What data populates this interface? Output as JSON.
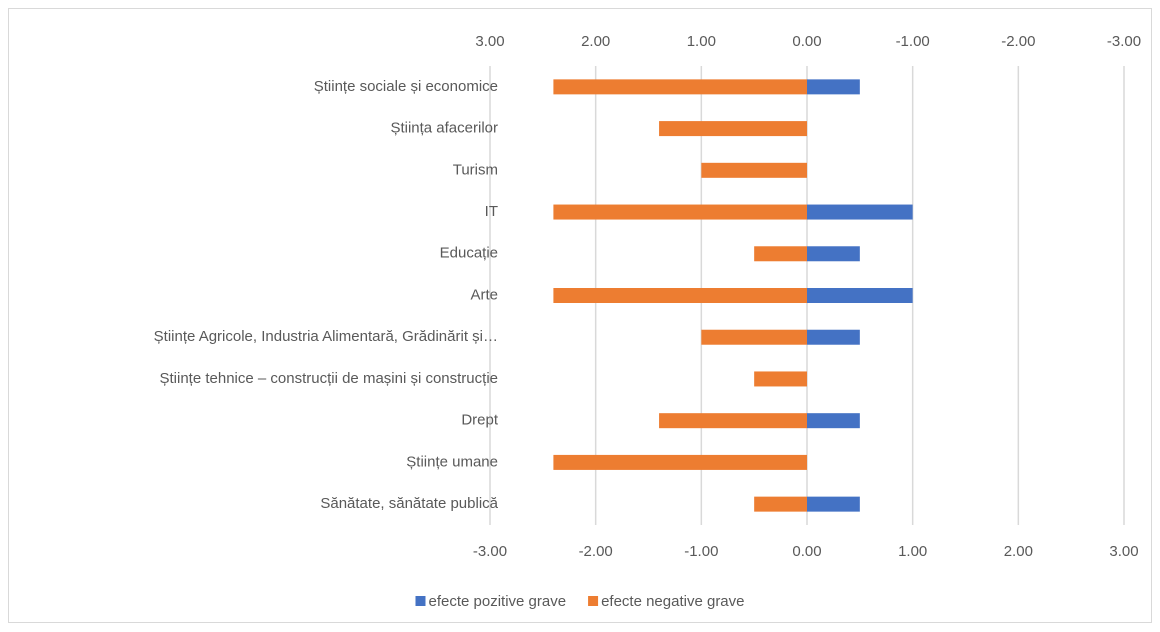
{
  "chart_data": {
    "type": "bar",
    "orientation": "horizontal",
    "categories": [
      "Științe sociale și economice",
      "Știința afacerilor",
      "Turism",
      "IT",
      "Educație",
      "Arte",
      "Științe Agricole, Industria Alimentară, Grădinărit și…",
      "Științe tehnice – construcții de mașini și construcție",
      "Drept",
      "Științe umane",
      "Sănătate, sănătate publică"
    ],
    "series": [
      {
        "name": "efecte pozitive grave",
        "color": "#4472c4",
        "values": [
          0.5,
          0,
          0,
          1,
          0.5,
          1,
          0.5,
          0,
          0.5,
          0,
          0.5
        ]
      },
      {
        "name": "efecte negative grave",
        "color": "#ed7d31",
        "values": [
          -2.4,
          -1.4,
          -1,
          -2.4,
          -0.5,
          -2.4,
          -1,
          -0.5,
          -1.4,
          -2.4,
          -0.5
        ]
      }
    ],
    "xlim": [
      -3,
      3
    ],
    "xticks": [
      {
        "value": -3,
        "label": "-3.00"
      },
      {
        "value": -2,
        "label": "-2.00"
      },
      {
        "value": -1,
        "label": "-1.00"
      },
      {
        "value": 0,
        "label": "0.00"
      },
      {
        "value": 1,
        "label": "1.00"
      },
      {
        "value": 2,
        "label": "2.00"
      },
      {
        "value": 3,
        "label": "3.00"
      }
    ],
    "x2lim": [
      3,
      -3
    ],
    "x2ticks": [
      {
        "value": 3,
        "label": "3.00"
      },
      {
        "value": 2,
        "label": "2.00"
      },
      {
        "value": 1,
        "label": "1.00"
      },
      {
        "value": 0,
        "label": "0.00"
      },
      {
        "value": -1,
        "label": "-1.00"
      },
      {
        "value": -2,
        "label": "-2.00"
      },
      {
        "value": -3,
        "label": "-3.00"
      }
    ],
    "grid": true,
    "legend": "bottom"
  }
}
